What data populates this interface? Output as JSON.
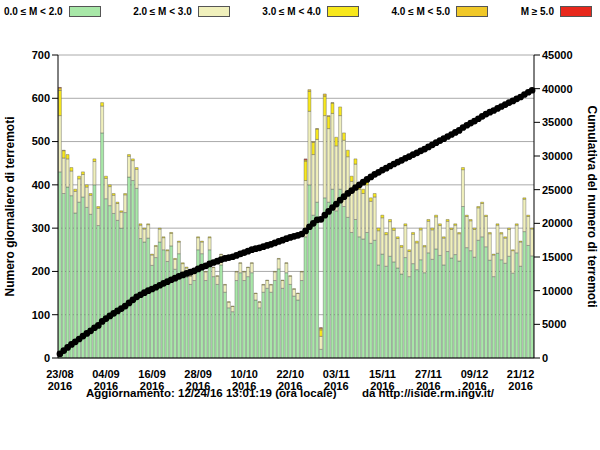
{
  "chart_data": {
    "type": "bar",
    "stacked": true,
    "grid": true,
    "legend": "top",
    "y_label": "Numero giornaliero di terremoti",
    "y2_label": "Cumulativa del numero di terremoti",
    "annotations": [
      "Aggiornamento: 12/24/16 13:01:19 (ora locale)",
      "da http://iside.rm.ingv.it/"
    ],
    "categories": [
      "23/08\n2016",
      null,
      null,
      null,
      null,
      null,
      null,
      null,
      null,
      null,
      null,
      null,
      "04/09\n2016",
      null,
      null,
      null,
      null,
      null,
      null,
      null,
      null,
      null,
      null,
      null,
      "16/09\n2016",
      null,
      null,
      null,
      null,
      null,
      null,
      null,
      null,
      null,
      null,
      null,
      "28/09\n2016",
      null,
      null,
      null,
      null,
      null,
      null,
      null,
      null,
      null,
      null,
      null,
      "10/10\n2016",
      null,
      null,
      null,
      null,
      null,
      null,
      null,
      null,
      null,
      null,
      null,
      "22/10\n2016",
      null,
      null,
      null,
      null,
      null,
      null,
      null,
      null,
      null,
      null,
      null,
      "03/11\n2016",
      null,
      null,
      null,
      null,
      null,
      null,
      null,
      null,
      null,
      null,
      null,
      "15/11\n2016",
      null,
      null,
      null,
      null,
      null,
      null,
      null,
      null,
      null,
      null,
      null,
      "27/11\n2016",
      null,
      null,
      null,
      null,
      null,
      null,
      null,
      null,
      null,
      null,
      null,
      "09/12\n2016",
      null,
      null,
      null,
      null,
      null,
      null,
      null,
      null,
      null,
      null,
      null,
      "21/12\n2016",
      null,
      null,
      null
    ],
    "ylim": [
      0,
      700
    ],
    "yticks": [
      0,
      100,
      200,
      300,
      400,
      500,
      600,
      700
    ],
    "y2lim": [
      0,
      45000
    ],
    "y2ticks": [
      0,
      5000,
      10000,
      15000,
      20000,
      25000,
      30000,
      35000,
      40000,
      45000
    ],
    "series": [
      {
        "name": "0.0 ≤ M < 2.0",
        "color": "#a8e8a8",
        "values": [
          430,
          380,
          395,
          375,
          335,
          360,
          372,
          348,
          332,
          400,
          306,
          520,
          368,
          352,
          334,
          318,
          300,
          336,
          418,
          410,
          392,
          276,
          268,
          277,
          214,
          232,
          268,
          250,
          223,
          259,
          205,
          241,
          196,
          187,
          170,
          179,
          250,
          241,
          179,
          250,
          188,
          170,
          215,
          152,
          116,
          107,
          179,
          197,
          179,
          188,
          197,
          134,
          116,
          152,
          161,
          152,
          179,
          206,
          161,
          197,
          170,
          143,
          134,
          179,
          280,
          400,
          330,
          360,
          20,
          370,
          360,
          390,
          340,
          390,
          350,
          325,
          290,
          320,
          280,
          275,
          290,
          265,
          272,
          215,
          240,
          212,
          235,
          222,
          208,
          194,
          232,
          188,
          218,
          204,
          227,
          197,
          243,
          228,
          252,
          237,
          215,
          246,
          231,
          239,
          224,
          350,
          255,
          248,
          233,
          272,
          280,
          257,
          226,
          188,
          242,
          227,
          219,
          235,
          196,
          243,
          212,
          292,
          260,
          236
        ]
      },
      {
        "name": "2.0 ≤ M < 3.0",
        "color": "#f0f0bc",
        "values": [
          130,
          82,
          65,
          57,
          50,
          54,
          52,
          47,
          44,
          54,
          40,
          62,
          47,
          44,
          42,
          39,
          37,
          41,
          48,
          46,
          44,
          31,
          30,
          31,
          24,
          26,
          30,
          28,
          25,
          29,
          23,
          27,
          22,
          21,
          19,
          20,
          28,
          27,
          20,
          28,
          21,
          19,
          24,
          17,
          13,
          12,
          20,
          22,
          20,
          21,
          22,
          15,
          13,
          17,
          18,
          17,
          20,
          23,
          18,
          22,
          19,
          16,
          15,
          20,
          130,
          170,
          140,
          145,
          30,
          190,
          170,
          175,
          150,
          170,
          153,
          140,
          118,
          128,
          110,
          105,
          110,
          97,
          100,
          79,
          84,
          73,
          80,
          73,
          68,
          62,
          74,
          58,
          68,
          62,
          69,
          60,
          73,
          68,
          74,
          69,
          62,
          70,
          66,
          68,
          63,
          85,
          72,
          69,
          64,
          75,
          77,
          70,
          61,
          50,
          65,
          60,
          58,
          62,
          52,
          64,
          56,
          75,
          67,
          62
        ]
      },
      {
        "name": "3.0 ≤ M < 4.0",
        "color": "#f8e81c",
        "values": [
          58,
          17,
          10,
          8,
          5,
          6,
          6,
          5,
          4,
          6,
          4,
          8,
          5,
          4,
          4,
          3,
          3,
          3,
          4,
          4,
          4,
          3,
          2,
          2,
          2,
          2,
          2,
          2,
          2,
          2,
          2,
          2,
          2,
          2,
          1,
          1,
          2,
          2,
          1,
          2,
          1,
          1,
          1,
          1,
          1,
          1,
          1,
          1,
          1,
          1,
          1,
          1,
          1,
          1,
          1,
          1,
          1,
          1,
          1,
          1,
          1,
          1,
          1,
          1,
          45,
          46,
          28,
          24,
          15,
          45,
          28,
          24,
          20,
          20,
          17,
          15,
          12,
          12,
          10,
          10,
          10,
          8,
          8,
          6,
          6,
          5,
          5,
          5,
          4,
          4,
          4,
          4,
          4,
          4,
          4,
          3,
          4,
          4,
          4,
          4,
          3,
          4,
          3,
          3,
          3,
          5,
          3,
          3,
          3,
          3,
          3,
          3,
          3,
          2,
          3,
          3,
          3,
          3,
          2,
          3,
          2,
          3,
          3,
          2
        ]
      },
      {
        "name": "4.0 ≤ M < 5.0",
        "color": "#f0c828",
        "values": [
          6,
          1,
          0,
          0,
          0,
          0,
          0,
          0,
          0,
          0,
          0,
          0,
          0,
          0,
          0,
          0,
          0,
          0,
          0,
          0,
          0,
          0,
          0,
          0,
          0,
          0,
          0,
          0,
          0,
          0,
          0,
          0,
          0,
          0,
          0,
          0,
          0,
          0,
          0,
          0,
          0,
          0,
          0,
          0,
          0,
          0,
          0,
          0,
          0,
          0,
          0,
          0,
          0,
          0,
          0,
          0,
          0,
          0,
          0,
          0,
          0,
          0,
          0,
          0,
          3,
          4,
          2,
          1,
          4,
          5,
          2,
          1,
          0,
          0,
          0,
          0,
          0,
          0,
          0,
          0,
          0,
          0,
          0,
          0,
          0,
          0,
          0,
          0,
          0,
          0,
          0,
          0,
          0,
          0,
          0,
          0,
          0,
          0,
          0,
          0,
          0,
          0,
          0,
          0,
          0,
          0,
          0,
          0,
          0,
          0,
          0,
          0,
          0,
          0,
          0,
          0,
          0,
          0,
          0,
          0,
          0,
          0,
          0,
          0
        ]
      },
      {
        "name": "M ≥ 5.0",
        "color": "#e8281c",
        "values": [
          1,
          0,
          0,
          0,
          0,
          0,
          0,
          0,
          0,
          0,
          0,
          0,
          0,
          0,
          0,
          0,
          0,
          0,
          0,
          0,
          0,
          0,
          0,
          0,
          0,
          0,
          0,
          0,
          0,
          0,
          0,
          0,
          0,
          0,
          0,
          0,
          0,
          0,
          0,
          0,
          0,
          0,
          0,
          0,
          0,
          0,
          0,
          0,
          0,
          0,
          0,
          0,
          0,
          0,
          0,
          0,
          0,
          0,
          0,
          0,
          0,
          0,
          0,
          0,
          2,
          0,
          0,
          0,
          1,
          0,
          0,
          0,
          0,
          0,
          0,
          0,
          0,
          0,
          0,
          0,
          0,
          0,
          0,
          0,
          0,
          0,
          0,
          0,
          0,
          0,
          0,
          0,
          0,
          0,
          0,
          0,
          0,
          0,
          0,
          0,
          0,
          0,
          0,
          0,
          0,
          0,
          0,
          0,
          0,
          0,
          0,
          0,
          0,
          0,
          0,
          0,
          0,
          0,
          0,
          0,
          0,
          0,
          0,
          0
        ]
      },
      {
        "type": "line",
        "axis": "y2",
        "color": "#000000",
        "marker": "circle",
        "values": [
          625,
          1105,
          1575,
          2015,
          2405,
          2825,
          3255,
          3655,
          4035,
          4495,
          4845,
          5435,
          5855,
          6255,
          6635,
          6995,
          7335,
          7715,
          8185,
          8645,
          9085,
          9395,
          9695,
          10005,
          10245,
          10505,
          10805,
          11085,
          11335,
          11625,
          11855,
          12125,
          12345,
          12555,
          12745,
          12945,
          13225,
          13495,
          13695,
          13975,
          14185,
          14375,
          14615,
          14785,
          14915,
          15035,
          15235,
          15455,
          15655,
          15865,
          16085,
          16235,
          16365,
          16535,
          16715,
          16885,
          17085,
          17315,
          17495,
          17715,
          17905,
          18065,
          18215,
          18415,
          18875,
          19495,
          19995,
          20525,
          20595,
          21205,
          21765,
          22355,
          22865,
          23445,
          23965,
          24445,
          24865,
          25325,
          25725,
          26115,
          26525,
          26895,
          27275,
          27575,
          27905,
          28195,
          28515,
          28815,
          29095,
          29355,
          29665,
          29915,
          30205,
          30475,
          30775,
          31035,
          31355,
          31655,
          31985,
          32295,
          32575,
          32895,
          33195,
          33505,
          33795,
          34235,
          34565,
          34885,
          35185,
          35535,
          35895,
          36225,
          36515,
          36755,
          37065,
          37355,
          37635,
          37935,
          38185,
          38495,
          38765,
          39135,
          39465,
          39765
        ]
      }
    ]
  }
}
